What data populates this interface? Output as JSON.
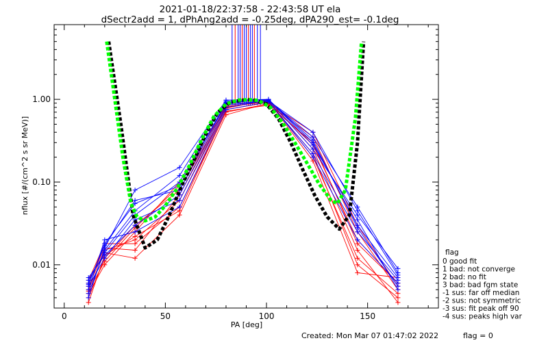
{
  "window": {
    "title_line1": "2021-01-18/22:37:58 - 22:43:58 UT ela",
    "title_line2": "dSectr2add = 1, dPhAng2add = -0.25deg, dPA290_est=  -0.1deg"
  },
  "footer": {
    "created": "Created: Mon Mar 07 01:47:02 2022",
    "flag": "flag = 0"
  },
  "legend": {
    "title": "flag",
    "items": [
      " 0 good fit",
      " 1 bad: not converge",
      " 2 bad: no fit",
      " 3 bad: bad fgm state",
      "-1 sus: far off median",
      "-2 sus: not symmetric",
      "-3 sus: fit peak off 90",
      "-4 sus: peaks high var"
    ]
  },
  "colors": {
    "series_red": "#ff0000",
    "series_blue": "#0000ff",
    "fit_black": "#000000",
    "fit_green": "#00ff00",
    "axes": "#000000"
  },
  "chart_data": {
    "type": "line",
    "title": "2021-01-18/22:37:58 - 22:43:58 UT ela",
    "subtitle": "dSectr2add = 1, dPhAng2add = -0.25deg, dPA290_est=  -0.1deg",
    "xlabel": "PA [deg]",
    "ylabel": "nflux [#/(cm^2 s sr MeV)]",
    "xlim": [
      -5,
      185
    ],
    "ylim": [
      0.003,
      8.0
    ],
    "yscale": "log",
    "x_ticks": [
      0,
      50,
      100,
      150
    ],
    "y_ticks": [
      {
        "value": 0.01,
        "label": "0.01"
      },
      {
        "value": 0.1,
        "label": "0.10"
      },
      {
        "value": 1.0,
        "label": "1.00"
      }
    ],
    "grid": false,
    "legend_position": "right-bottom",
    "pa_bins": [
      12,
      20,
      35,
      57,
      80,
      101,
      123,
      145,
      165
    ],
    "series_red": [
      [
        0.0055,
        0.015,
        0.02,
        0.06,
        0.75,
        0.92,
        0.28,
        0.02,
        0.006
      ],
      [
        0.004,
        0.012,
        0.03,
        0.08,
        0.8,
        0.97,
        0.2,
        0.012,
        0.0045
      ],
      [
        0.0065,
        0.018,
        0.018,
        0.05,
        0.7,
        0.88,
        0.35,
        0.025,
        0.005
      ],
      [
        0.0045,
        0.01,
        0.025,
        0.1,
        0.85,
        0.95,
        0.18,
        0.008,
        0.007
      ],
      [
        0.005,
        0.014,
        0.012,
        0.04,
        0.65,
        0.9,
        0.4,
        0.03,
        0.0055
      ],
      [
        0.006,
        0.016,
        0.015,
        0.07,
        0.78,
        0.99,
        0.25,
        0.015,
        0.0035
      ],
      [
        0.0035,
        0.013,
        0.022,
        0.045,
        0.72,
        0.85,
        0.3,
        0.018,
        0.006
      ],
      [
        0.0048,
        0.011,
        0.028,
        0.09,
        0.82,
        0.93,
        0.22,
        0.01,
        0.004
      ]
    ],
    "series_blue": [
      [
        0.006,
        0.017,
        0.06,
        0.08,
        0.9,
        1.0,
        0.3,
        0.03,
        0.007
      ],
      [
        0.0045,
        0.015,
        0.045,
        0.12,
        0.95,
        0.98,
        0.25,
        0.04,
        0.009
      ],
      [
        0.007,
        0.013,
        0.03,
        0.07,
        0.85,
        0.95,
        0.2,
        0.02,
        0.006
      ],
      [
        0.0055,
        0.012,
        0.035,
        0.06,
        0.8,
        0.97,
        0.35,
        0.05,
        0.008
      ],
      [
        0.004,
        0.016,
        0.08,
        0.15,
        0.98,
        1.0,
        0.28,
        0.035,
        0.005
      ],
      [
        0.005,
        0.02,
        0.025,
        0.05,
        0.75,
        0.93,
        0.22,
        0.025,
        0.0065
      ],
      [
        0.0065,
        0.014,
        0.04,
        0.1,
        0.88,
        0.96,
        0.4,
        0.045,
        0.0075
      ],
      [
        0.0058,
        0.018,
        0.055,
        0.09,
        0.92,
        0.99,
        0.32,
        0.028,
        0.0055
      ]
    ],
    "fit_black": {
      "name": "",
      "x": [
        22,
        28,
        34,
        40,
        46,
        52,
        58,
        64,
        70,
        76,
        82,
        88,
        91,
        94,
        100,
        106,
        112,
        118,
        124,
        130,
        136,
        141,
        145,
        148
      ],
      "y": [
        5.0,
        0.5,
        0.04,
        0.016,
        0.02,
        0.04,
        0.09,
        0.18,
        0.38,
        0.7,
        0.92,
        0.98,
        0.99,
        0.98,
        0.88,
        0.58,
        0.3,
        0.14,
        0.068,
        0.038,
        0.027,
        0.04,
        0.3,
        5.0
      ]
    },
    "fit_green": {
      "name": "",
      "x": [
        21,
        25,
        29,
        33,
        36,
        40,
        45,
        50,
        56,
        62,
        68,
        74,
        80,
        86,
        91,
        96,
        102,
        108,
        114,
        120,
        126,
        132,
        135,
        139,
        144,
        147
      ],
      "y": [
        5.0,
        1.0,
        0.2,
        0.055,
        0.038,
        0.034,
        0.038,
        0.052,
        0.085,
        0.16,
        0.33,
        0.62,
        0.88,
        0.98,
        0.99,
        0.97,
        0.8,
        0.52,
        0.3,
        0.17,
        0.095,
        0.06,
        0.055,
        0.08,
        0.6,
        5.0
      ]
    }
  }
}
